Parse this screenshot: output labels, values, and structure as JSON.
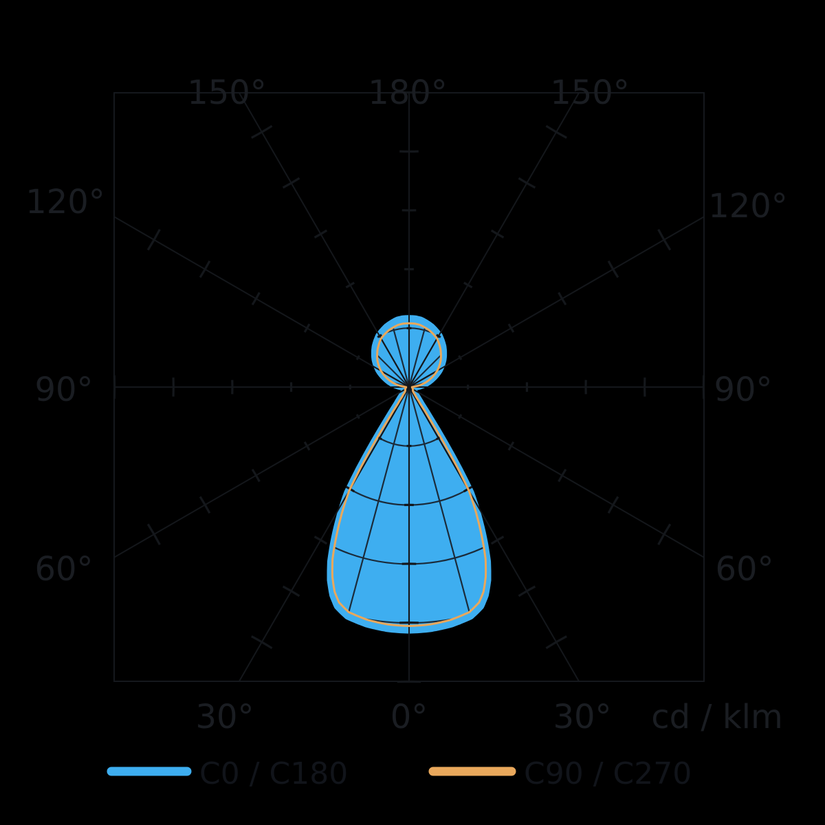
{
  "chart_data": {
    "type": "polar_photometric",
    "title": "",
    "unit": "cd / klm",
    "grid": {
      "ring_values_cd_klm": [
        100,
        200,
        300,
        400,
        500
      ],
      "main_spoke_step_deg": 30,
      "net_spoke_step_deg": 15
    },
    "axis_labels": {
      "top": [
        "150°",
        "180°",
        "150°"
      ],
      "left": [
        "120°",
        "90°",
        "60°"
      ],
      "right": [
        "120°",
        "90°",
        "60°"
      ],
      "bottom": [
        "30°",
        "0°",
        "30°"
      ],
      "unit": "cd / klm"
    },
    "angles_deg_from_nadir": [
      0,
      5,
      10,
      15,
      18,
      20,
      22,
      24,
      26,
      28,
      30,
      31,
      32,
      33,
      34,
      36,
      40,
      45,
      55,
      65,
      75,
      85,
      90,
      95,
      100,
      105,
      110,
      120,
      130,
      140,
      150,
      160,
      170,
      175,
      180
    ],
    "series": [
      {
        "name": "C0 / C180",
        "color": "#3EAEF0",
        "values_cd_klm": [
          411,
          410,
          407,
          401,
          390,
          375,
          353,
          324,
          286,
          247,
          207,
          163,
          111,
          64,
          35,
          19,
          12,
          9,
          8,
          7,
          6,
          5,
          5,
          10,
          20,
          30,
          39,
          58,
          74,
          88,
          100,
          108,
          114,
          115,
          115
        ]
      },
      {
        "name": "C90 / C270",
        "color": "#E9A85C",
        "values_cd_klm": [
          405,
          404,
          401,
          395,
          384,
          369,
          347,
          319,
          281,
          243,
          203,
          160,
          109,
          63,
          34,
          19,
          12,
          9,
          8,
          7,
          6,
          5,
          5,
          9,
          19,
          28,
          37,
          55,
          70,
          83,
          95,
          102,
          107,
          108,
          108
        ]
      }
    ],
    "legend": {
      "position": "bottom",
      "items": [
        "C0 / C180",
        "C90 / C270"
      ]
    },
    "colors": {
      "background": "#000000",
      "grid": "#14171b",
      "net": "#1b2b3a",
      "labels": "#1a1d22"
    }
  }
}
